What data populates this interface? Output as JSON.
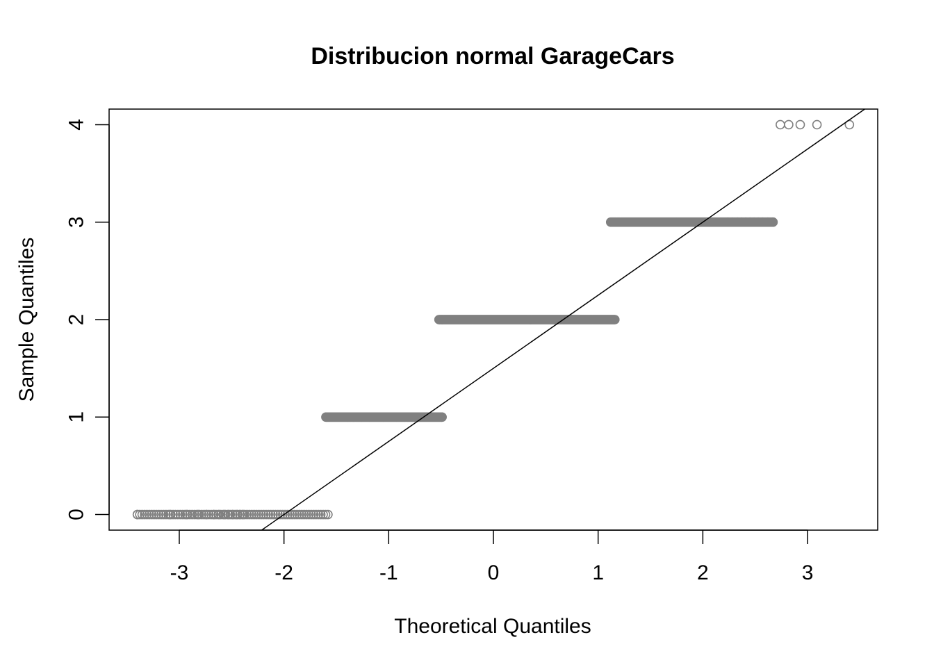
{
  "chart_data": {
    "type": "scatter",
    "title": "Distribucion normal GarageCars",
    "xlabel": "Theoretical Quantiles",
    "ylabel": "Sample Quantiles",
    "xlim": [
      -3.67,
      3.67
    ],
    "ylim": [
      -0.16,
      4.16
    ],
    "xticks": [
      "-3",
      "-2",
      "-1",
      "0",
      "1",
      "2",
      "3"
    ],
    "yticks": [
      "0",
      "1",
      "2",
      "3",
      "4"
    ],
    "grid": false,
    "point_color": "#808080",
    "line_color": "#000000",
    "reference_line": {
      "intercept": 1.5,
      "slope": 0.75
    },
    "groups": [
      {
        "y": 0,
        "x_min": -3.4,
        "x_max": -1.58,
        "approx_count": 81
      },
      {
        "y": 1,
        "x_min": -1.6,
        "x_max": -0.49,
        "approx_count": 369
      },
      {
        "y": 2,
        "x_min": -0.52,
        "x_max": 1.16,
        "approx_count": 824
      },
      {
        "y": 3,
        "x_min": 1.12,
        "x_max": 2.67,
        "approx_count": 181
      },
      {
        "y": 4,
        "x_min": 2.74,
        "x_max": 3.4,
        "approx_count": 5
      }
    ],
    "sparse_points": [
      {
        "x": -3.4,
        "y": 0
      },
      {
        "x": -3.09,
        "y": 0
      },
      {
        "x": -2.93,
        "y": 0
      },
      {
        "x": -2.82,
        "y": 0
      },
      {
        "x": -2.74,
        "y": 0
      },
      {
        "x": -2.67,
        "y": 0
      },
      {
        "x": -2.62,
        "y": 0
      },
      {
        "x": -2.57,
        "y": 0
      },
      {
        "x": -2.53,
        "y": 0
      },
      {
        "x": -2.49,
        "y": 0
      },
      {
        "x": -2.45,
        "y": 0
      },
      {
        "x": -2.42,
        "y": 0
      },
      {
        "x": -2.39,
        "y": 0
      },
      {
        "x": 2.24,
        "y": 3
      },
      {
        "x": 2.28,
        "y": 3
      },
      {
        "x": 2.33,
        "y": 3
      },
      {
        "x": 2.37,
        "y": 3
      },
      {
        "x": 2.41,
        "y": 3
      },
      {
        "x": 2.45,
        "y": 3
      },
      {
        "x": 2.49,
        "y": 3
      },
      {
        "x": 2.53,
        "y": 3
      },
      {
        "x": 2.57,
        "y": 3
      },
      {
        "x": 2.62,
        "y": 3
      },
      {
        "x": 2.67,
        "y": 3
      },
      {
        "x": 2.74,
        "y": 4
      },
      {
        "x": 2.82,
        "y": 4
      },
      {
        "x": 2.93,
        "y": 4
      },
      {
        "x": 3.09,
        "y": 4
      },
      {
        "x": 3.4,
        "y": 4
      }
    ]
  }
}
